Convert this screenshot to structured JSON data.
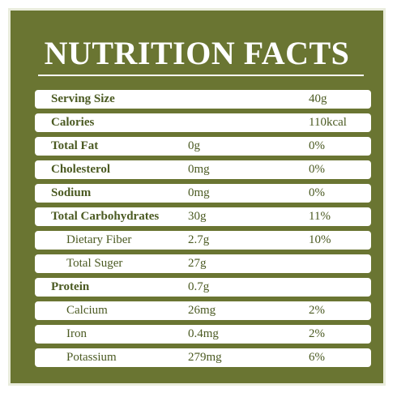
{
  "title": "NUTRITION FACTS",
  "rows": [
    {
      "name": "Serving Size",
      "amount": "",
      "pct": "40g",
      "bold": true,
      "sub": false
    },
    {
      "name": "Calories",
      "amount": "",
      "pct": "110kcal",
      "bold": true,
      "sub": false
    },
    {
      "name": "Total  Fat",
      "amount": "0g",
      "pct": "0%",
      "bold": true,
      "sub": false
    },
    {
      "name": "Cholesterol",
      "amount": "0mg",
      "pct": "0%",
      "bold": true,
      "sub": false
    },
    {
      "name": "Sodium",
      "amount": "0mg",
      "pct": "0%",
      "bold": true,
      "sub": false
    },
    {
      "name": "Total Carbohydrates",
      "amount": "30g",
      "pct": "11%",
      "bold": true,
      "sub": false
    },
    {
      "name": "Dietary Fiber",
      "amount": "2.7g",
      "pct": "10%",
      "bold": false,
      "sub": true
    },
    {
      "name": "Total Suger",
      "amount": "27g",
      "pct": "",
      "bold": false,
      "sub": true
    },
    {
      "name": "Protein",
      "amount": "0.7g",
      "pct": "",
      "bold": true,
      "sub": false
    },
    {
      "name": "Calcium",
      "amount": "26mg",
      "pct": "2%",
      "bold": false,
      "sub": true
    },
    {
      "name": "Iron",
      "amount": "0.4mg",
      "pct": "2%",
      "bold": false,
      "sub": true
    },
    {
      "name": "Potassium",
      "amount": "279mg",
      "pct": "6%",
      "bold": false,
      "sub": true
    }
  ],
  "colors": {
    "panel": "#6a7532",
    "text": "#4b5a22",
    "row_bg": "#ffffff"
  }
}
